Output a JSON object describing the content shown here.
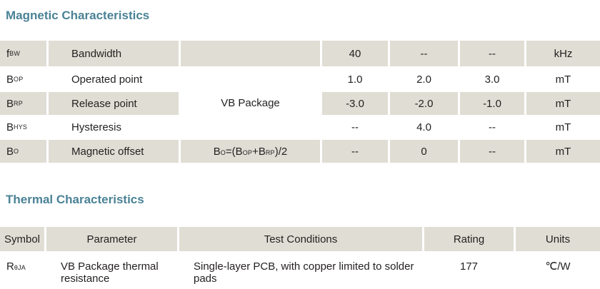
{
  "page": {
    "background": "#ffffff",
    "text_color": "#231f20",
    "accent_teal": "#4a8296",
    "cell_gray": "#e0ddd4"
  },
  "magnetic": {
    "title": "Magnetic Characteristics",
    "merged_test_condition": "VB Package",
    "rows": [
      {
        "symbol_base": "f",
        "symbol_sub": "BW",
        "parameter": "Bandwidth",
        "min": "40",
        "typ": "--",
        "max": "--",
        "units": "kHz"
      },
      {
        "symbol_base": "B",
        "symbol_sub": "OP",
        "parameter": "Operated point",
        "min": "1.0",
        "typ": "2.0",
        "max": "3.0",
        "units": "mT"
      },
      {
        "symbol_base": "B",
        "symbol_sub": "RP",
        "parameter": "Release point",
        "min": "-3.0",
        "typ": "-2.0",
        "max": "-1.0",
        "units": "mT"
      },
      {
        "symbol_base": "B",
        "symbol_sub": "HYS",
        "parameter": "Hysteresis",
        "min": "--",
        "typ": "4.0",
        "max": "--",
        "units": "mT"
      },
      {
        "symbol_base": "B",
        "symbol_sub": "O",
        "parameter": "Magnetic offset",
        "min": "--",
        "typ": "0",
        "max": "--",
        "units": "mT"
      }
    ],
    "offset_formula": {
      "b1": "B",
      "s1": "O",
      "m1": "=(B",
      "s2": "OP",
      "m2": "+B",
      "s3": "RP",
      "end": ")/2"
    }
  },
  "thermal": {
    "title": "Thermal Characteristics",
    "headers": {
      "symbol": "Symbol",
      "parameter": "Parameter",
      "test_conditions": "Test Conditions",
      "rating": "Rating",
      "units": "Units"
    },
    "row": {
      "symbol_base": "R",
      "symbol_sub": "θJA",
      "parameter": "VB Package thermal resistance",
      "test_conditions": "Single-layer PCB, with copper limited to solder pads",
      "rating": "177",
      "units": "℃/W"
    }
  }
}
